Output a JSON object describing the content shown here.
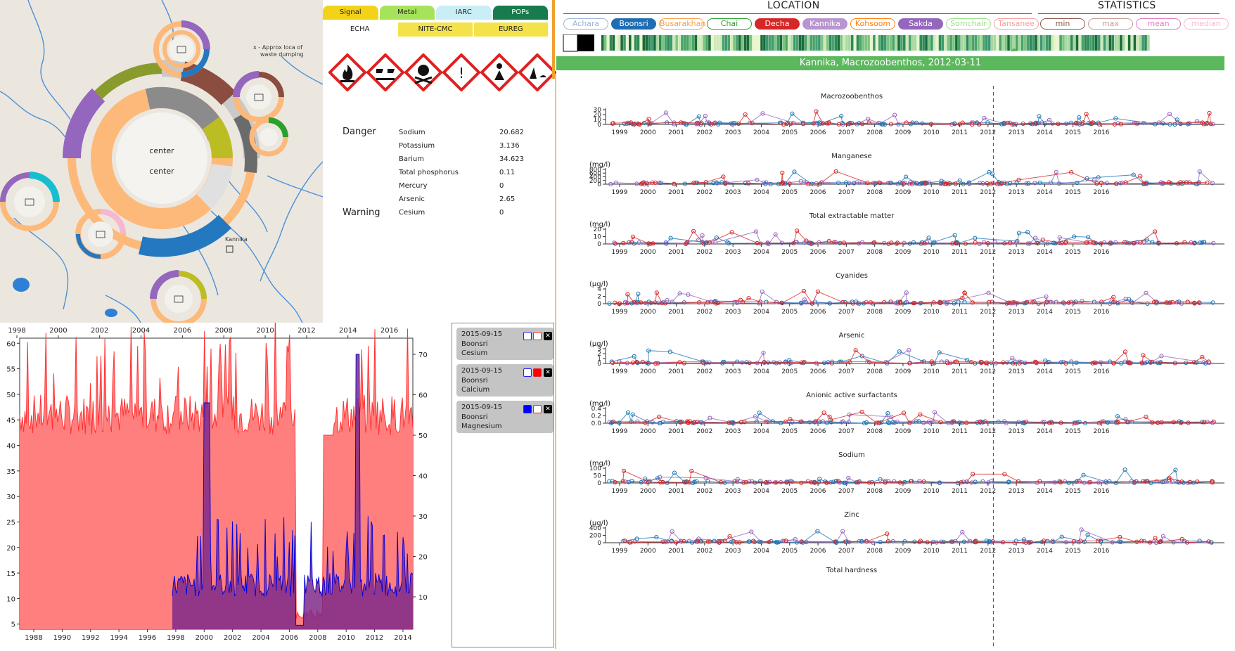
{
  "map": {
    "center_label_1": "center",
    "center_label_2": "center",
    "dump_note_1": "x - Approx loca of",
    "dump_note_2": "waste dumping",
    "kannika_label": "Kannika"
  },
  "hazard": {
    "tabs_top": [
      {
        "label": "Signal",
        "color": "#f3d21a"
      },
      {
        "label": "Metal",
        "color": "#a6e35a"
      },
      {
        "label": "IARC",
        "color": "#c9eef5"
      },
      {
        "label": "POPs",
        "color": "#177b4e"
      }
    ],
    "tabs_bottom": [
      {
        "label": "ECHA",
        "color": "#ffffff"
      },
      {
        "label": "NITE-CMC",
        "color": "#f3e24a"
      },
      {
        "label": "EUREG",
        "color": "#f3e24a"
      }
    ],
    "pictograms": [
      "flame-icon",
      "corrosion-icon",
      "skull-icon",
      "exclamation-icon",
      "health-hazard-icon",
      "environment-icon"
    ],
    "danger_label": "Danger",
    "warning_label": "Warning",
    "elements": [
      {
        "name": "Sodium",
        "value": "20.682"
      },
      {
        "name": "Potassium",
        "value": "3.136"
      },
      {
        "name": "Barium",
        "value": "34.623"
      },
      {
        "name": "Total phosphorus",
        "value": "0.11"
      },
      {
        "name": "Mercury",
        "value": "0"
      },
      {
        "name": "Arsenic",
        "value": "2.65"
      },
      {
        "name": "Cesium",
        "value": "0"
      }
    ]
  },
  "selection": {
    "cards": [
      {
        "date": "2015-09-15",
        "location": "Boonsri",
        "chemical": "Cesium",
        "box1": "#ffffff",
        "box2": "#ffffff"
      },
      {
        "date": "2015-09-15",
        "location": "Boonsri",
        "chemical": "Calcium",
        "box1": "#ffffff",
        "box2": "#ff0000"
      },
      {
        "date": "2015-09-15",
        "location": "Boonsri",
        "chemical": "Magnesium",
        "box1": "#0000ff",
        "box2": "#ffffff"
      }
    ]
  },
  "right": {
    "location_header": "LOCATION",
    "statistics_header": "STATISTICS",
    "locations": [
      {
        "label": "Achara",
        "color": "#9bb3d8",
        "filled": false
      },
      {
        "label": "Boonsri",
        "color": "#1f6eb4",
        "filled": true
      },
      {
        "label": "Busarakhan",
        "color": "#f7a14a",
        "filled": false
      },
      {
        "label": "Chai",
        "color": "#2ca02c",
        "filled": false
      },
      {
        "label": "Decha",
        "color": "#d62728",
        "filled": true
      },
      {
        "label": "Kannika",
        "color": "#b894d0",
        "filled": true
      },
      {
        "label": "Kohsoom",
        "color": "#ff7f0e",
        "filled": false
      },
      {
        "label": "Sakda",
        "color": "#9467bd",
        "filled": true
      },
      {
        "label": "Somchair",
        "color": "#98df8a",
        "filled": false
      },
      {
        "label": "Tansanee",
        "color": "#f4a0a0",
        "filled": false
      }
    ],
    "stats": [
      {
        "label": "min",
        "color": "#8c564b"
      },
      {
        "label": "max",
        "color": "#c49c94"
      },
      {
        "label": "mean",
        "color": "#e377c2"
      },
      {
        "label": "median",
        "color": "#f7b6d2"
      }
    ],
    "banner": "Kannika, Macrozoobenthos, 2012-03-11",
    "banner_color": "#5cb85c"
  },
  "chart_data": [
    {
      "type": "area",
      "title": "",
      "x_bottom_ticks": [
        "1988",
        "1990",
        "1992",
        "1994",
        "1996",
        "1998",
        "2000",
        "2002",
        "2004",
        "2006",
        "2008",
        "2010",
        "2012",
        "2014"
      ],
      "x_top_ticks": [
        "1998",
        "2000",
        "2002",
        "2004",
        "2006",
        "2008",
        "2010",
        "2012",
        "2014",
        "2016"
      ],
      "y_left_ticks": [
        "5",
        "10",
        "15",
        "20",
        "25",
        "30",
        "35",
        "40",
        "45",
        "50",
        "55",
        "60"
      ],
      "y_right_ticks": [
        "10",
        "20",
        "30",
        "40",
        "50",
        "60",
        "70"
      ],
      "series": [
        {
          "name": "Calcium",
          "color": "#ff3333",
          "fill": "#ff7f7f"
        },
        {
          "name": "Magnesium",
          "color": "#0000dd",
          "fill": "#7f2a8a"
        }
      ]
    },
    {
      "type": "line",
      "x_ticks": [
        "1999",
        "2000",
        "2001",
        "2002",
        "2003",
        "2004",
        "2005",
        "2006",
        "2007",
        "2008",
        "2009",
        "2010",
        "2011",
        "2012",
        "2013",
        "2014",
        "2015",
        "2016"
      ],
      "marker_date": "2012-03-11",
      "panels": [
        {
          "title": "Macrozoobenthos",
          "unit": "",
          "yticks": [
            "0",
            "10",
            "20",
            "30"
          ]
        },
        {
          "title": "Manganese",
          "unit": "(mg/l)",
          "yticks": [
            "0",
            "200",
            "400",
            "600",
            "800"
          ]
        },
        {
          "title": "Total extractable matter",
          "unit": "(mg/l)",
          "yticks": [
            "0",
            "10",
            "20"
          ]
        },
        {
          "title": "Cyanides",
          "unit": "(µg/l)",
          "yticks": [
            "0",
            "2",
            "4"
          ]
        },
        {
          "title": "Arsenic",
          "unit": "(µg/l)",
          "yticks": [
            "0",
            "1",
            "2",
            "3"
          ]
        },
        {
          "title": "Anionic active surfactants",
          "unit": "(mg/l)",
          "yticks": [
            "0.0",
            "0.2",
            "0.4"
          ]
        },
        {
          "title": "Sodium",
          "unit": "(mg/l)",
          "yticks": [
            "0",
            "50",
            "100"
          ]
        },
        {
          "title": "Zinc",
          "unit": "(µg/l)",
          "yticks": [
            "0",
            "200",
            "400"
          ]
        },
        {
          "title": "Total hardness",
          "unit": "",
          "yticks": []
        }
      ]
    }
  ]
}
